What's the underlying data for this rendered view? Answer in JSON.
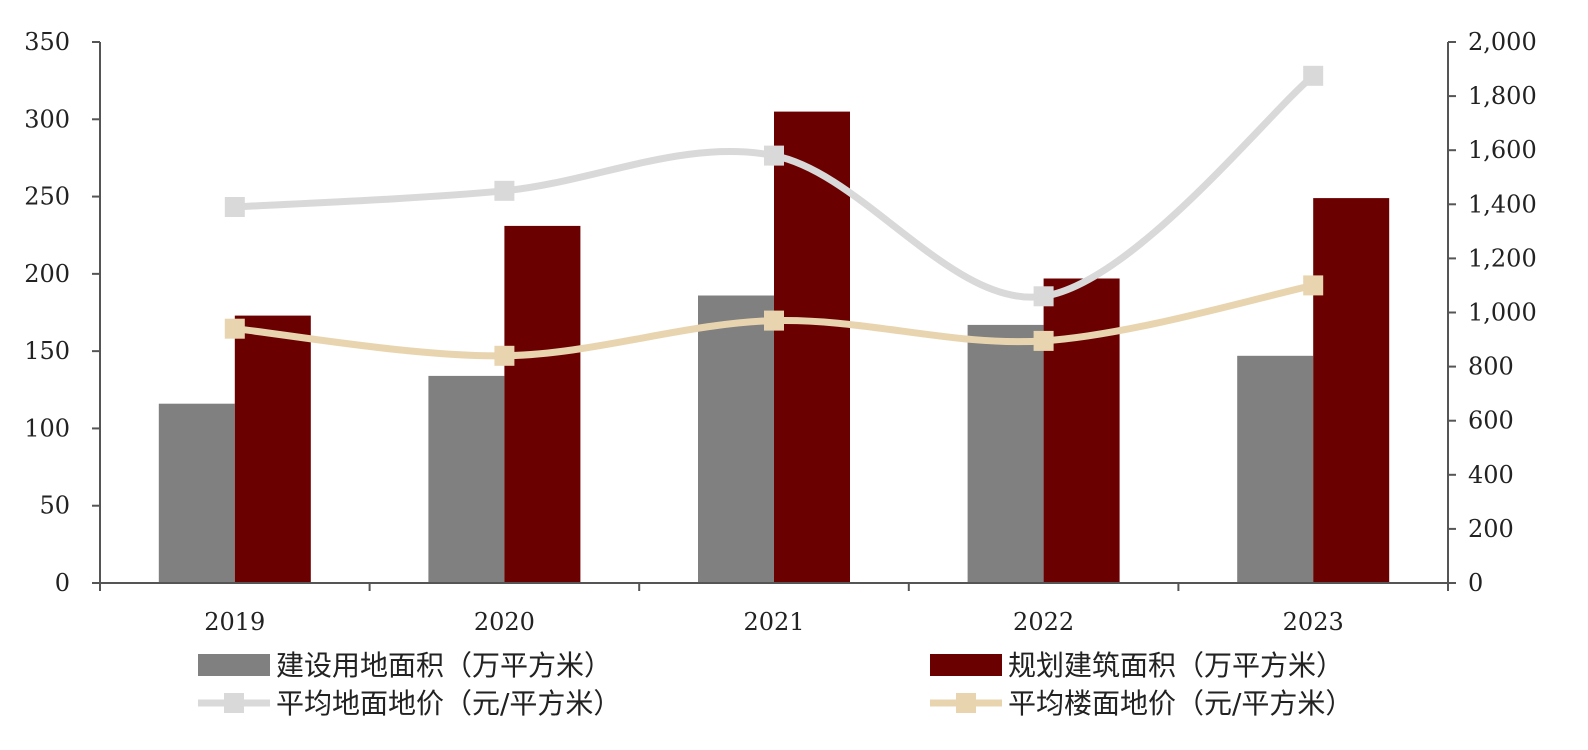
{
  "chart_data": {
    "type": "bar",
    "title": "",
    "xlabel": "",
    "ylabel": "",
    "categories": [
      "2019",
      "2020",
      "2021",
      "2022",
      "2023"
    ],
    "ylim": [
      0,
      350
    ],
    "y2lim": [
      0,
      2000
    ],
    "y_ticks": [
      "0",
      "50",
      "100",
      "150",
      "200",
      "250",
      "300",
      "350"
    ],
    "y2_ticks": [
      "0",
      "200",
      "400",
      "600",
      "800",
      "1,000",
      "1,200",
      "1,400",
      "1,600",
      "1,800",
      "2,000"
    ],
    "grid": false,
    "legend_position": "bottom",
    "series": [
      {
        "name": "建设用地面积（万平方米）",
        "kind": "bar",
        "axis": "left",
        "color": "#808080",
        "values": [
          116,
          134,
          186,
          167,
          147
        ]
      },
      {
        "name": "规划建筑面积（万平方米）",
        "kind": "bar",
        "axis": "left",
        "color": "#6b0000",
        "values": [
          173,
          231,
          305,
          197,
          249
        ]
      },
      {
        "name": "平均地面地价（元/平方米）",
        "kind": "line",
        "axis": "right",
        "color": "#d9d9d9",
        "values": [
          1390,
          1450,
          1580,
          1060,
          1875
        ]
      },
      {
        "name": "平均楼面地价（元/平方米）",
        "kind": "line",
        "axis": "right",
        "color": "#e8d5b0",
        "values": [
          940,
          840,
          970,
          895,
          1100
        ]
      }
    ]
  }
}
